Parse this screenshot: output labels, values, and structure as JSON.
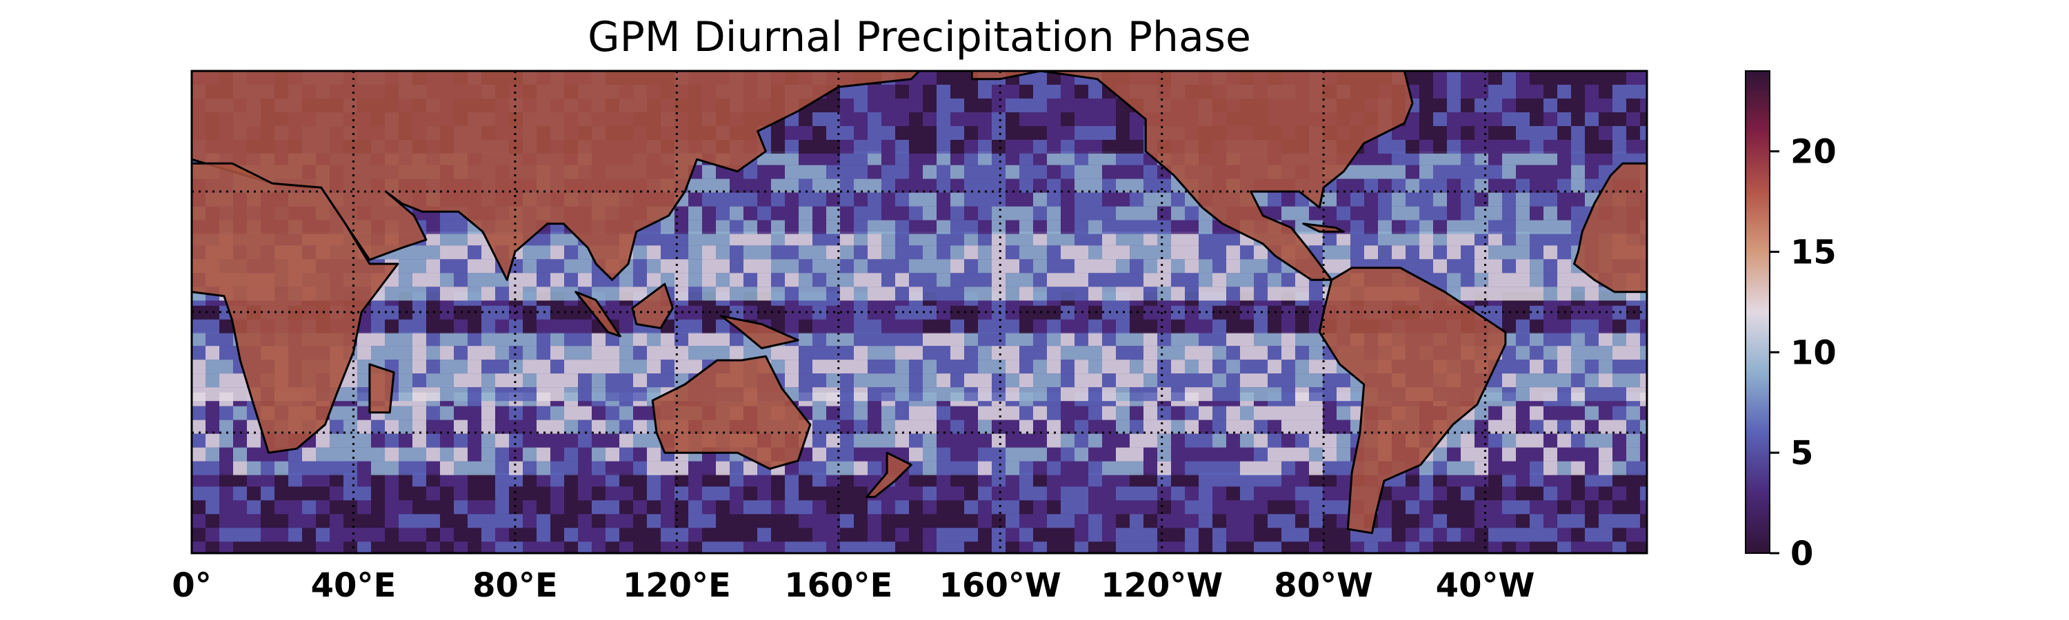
{
  "title": "GPM Diurnal Precipitation Phase",
  "map": {
    "projection": "PlateCarree",
    "central_longitude": 180,
    "lon_range": [
      0,
      360
    ],
    "lat_range": [
      -60,
      60
    ],
    "gridlines": "dotted",
    "grid_lon_step": 40,
    "grid_lat_step": 30,
    "coastlines": true,
    "x_tick_labels": [
      "0°",
      "40°E",
      "80°E",
      "120°E",
      "160°E",
      "160°W",
      "120°W",
      "80°W",
      "40°W"
    ],
    "field": "diurnal precipitation phase (hour of peak)"
  },
  "colorbar": {
    "cmap": "twilight_shifted",
    "range": [
      0,
      24
    ],
    "ticks": [
      "0",
      "5",
      "10",
      "15",
      "20"
    ],
    "tick_values": [
      0,
      5,
      10,
      15,
      20
    ],
    "colors": [
      "#2f1436",
      "#4b2a7a",
      "#5a63b6",
      "#8fb0cf",
      "#e2d9e2",
      "#d49a7c",
      "#b35649",
      "#7e1f43",
      "#2f1436"
    ]
  }
}
